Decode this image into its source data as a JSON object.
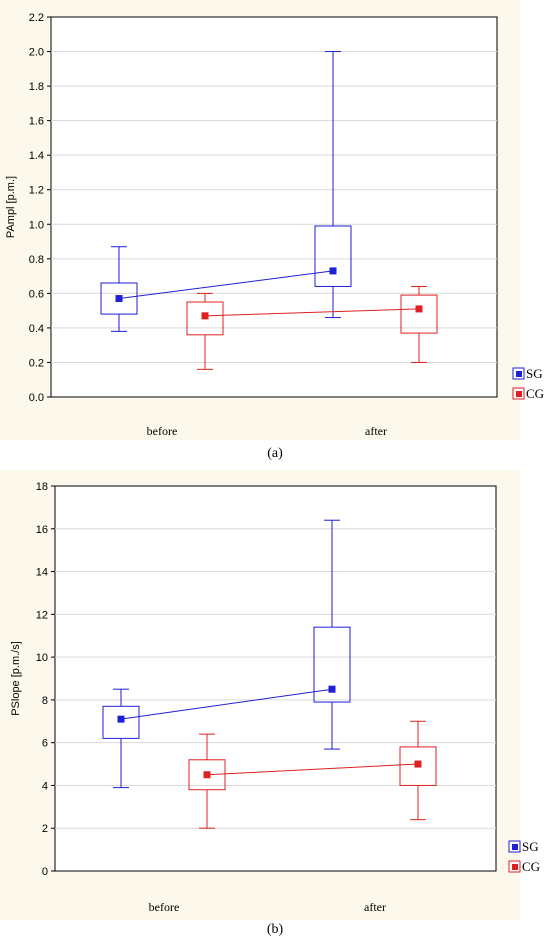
{
  "chart_data": [
    {
      "type": "box",
      "ylabel": "PAmpl [p.m.]",
      "ylim": [
        0,
        2.2
      ],
      "yticks": [
        "0.0",
        "0.2",
        "0.4",
        "0.6",
        "0.8",
        "1.0",
        "1.2",
        "1.4",
        "1.6",
        "1.8",
        "2.0",
        "2.2"
      ],
      "categories": [
        "before",
        "after"
      ],
      "grid": true,
      "legend_position": "bottom-right",
      "series": [
        {
          "name": "SG",
          "color": "#1f1fd6",
          "boxes": [
            {
              "category": "before",
              "whisker_low": 0.38,
              "q1": 0.48,
              "median": 0.57,
              "q3": 0.66,
              "whisker_high": 0.87
            },
            {
              "category": "after",
              "whisker_low": 0.46,
              "q1": 0.64,
              "median": 0.73,
              "q3": 0.99,
              "whisker_high": 2.0
            }
          ]
        },
        {
          "name": "CG",
          "color": "#e02020",
          "boxes": [
            {
              "category": "before",
              "whisker_low": 0.16,
              "q1": 0.36,
              "median": 0.47,
              "q3": 0.55,
              "whisker_high": 0.6
            },
            {
              "category": "after",
              "whisker_low": 0.2,
              "q1": 0.37,
              "median": 0.51,
              "q3": 0.59,
              "whisker_high": 0.64
            }
          ]
        }
      ],
      "caption": "(a)"
    },
    {
      "type": "box",
      "ylabel": "PSlope [p.m./s]",
      "ylim": [
        0,
        18
      ],
      "yticks": [
        "0",
        "2",
        "4",
        "6",
        "8",
        "10",
        "12",
        "14",
        "16",
        "18"
      ],
      "categories": [
        "before",
        "after"
      ],
      "grid": true,
      "legend_position": "bottom-right",
      "series": [
        {
          "name": "SG",
          "color": "#1f1fd6",
          "boxes": [
            {
              "category": "before",
              "whisker_low": 3.9,
              "q1": 6.2,
              "median": 7.1,
              "q3": 7.7,
              "whisker_high": 8.5
            },
            {
              "category": "after",
              "whisker_low": 5.7,
              "q1": 7.9,
              "median": 8.5,
              "q3": 11.4,
              "whisker_high": 16.4
            }
          ]
        },
        {
          "name": "CG",
          "color": "#e02020",
          "boxes": [
            {
              "category": "before",
              "whisker_low": 2.0,
              "q1": 3.8,
              "median": 4.5,
              "q3": 5.2,
              "whisker_high": 6.4
            },
            {
              "category": "after",
              "whisker_low": 2.4,
              "q1": 4.0,
              "median": 5.0,
              "q3": 5.8,
              "whisker_high": 7.0
            }
          ]
        }
      ],
      "caption": "(b)"
    }
  ]
}
